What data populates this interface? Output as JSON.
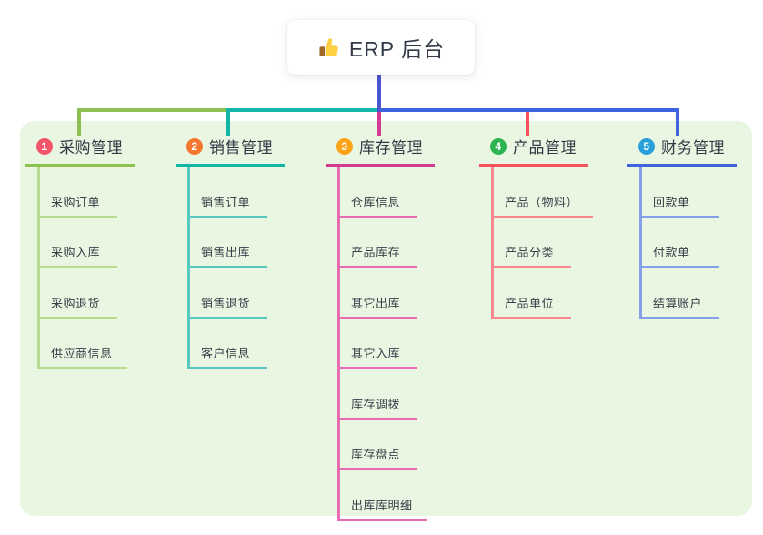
{
  "root": {
    "title": "ERP 后台",
    "icon": "thumbs-up-icon",
    "line_color": "#4c55d0"
  },
  "panel": {
    "bg": "#e8f6e2"
  },
  "branches": [
    {
      "num": "1",
      "title": "采购管理",
      "color": "#8cc152",
      "light": "#b7db8e",
      "badge": "#f2546a",
      "children": [
        "采购订单",
        "采购入库",
        "采购退货",
        "供应商信息"
      ]
    },
    {
      "num": "2",
      "title": "销售管理",
      "color": "#12b5a6",
      "light": "#57c8bd",
      "badge": "#f4772f",
      "children": [
        "销售订单",
        "销售出库",
        "销售退货",
        "客户信息"
      ]
    },
    {
      "num": "3",
      "title": "库存管理",
      "color": "#d33a92",
      "light": "#e86cb2",
      "badge": "#fba315",
      "children": [
        "仓库信息",
        "产品库存",
        "其它出库",
        "其它入库",
        "库存调拨",
        "库存盘点",
        "出库库明细"
      ]
    },
    {
      "num": "4",
      "title": "产品管理",
      "color": "#f4515c",
      "light": "#f8878f",
      "badge": "#2cb450",
      "children": [
        "产品（物料）",
        "产品分类",
        "产品单位"
      ]
    },
    {
      "num": "5",
      "title": "财务管理",
      "color": "#3e63dd",
      "light": "#84a0ea",
      "badge": "#2aa0d8",
      "children": [
        "回款单",
        "付款单",
        "结算账户"
      ]
    }
  ]
}
